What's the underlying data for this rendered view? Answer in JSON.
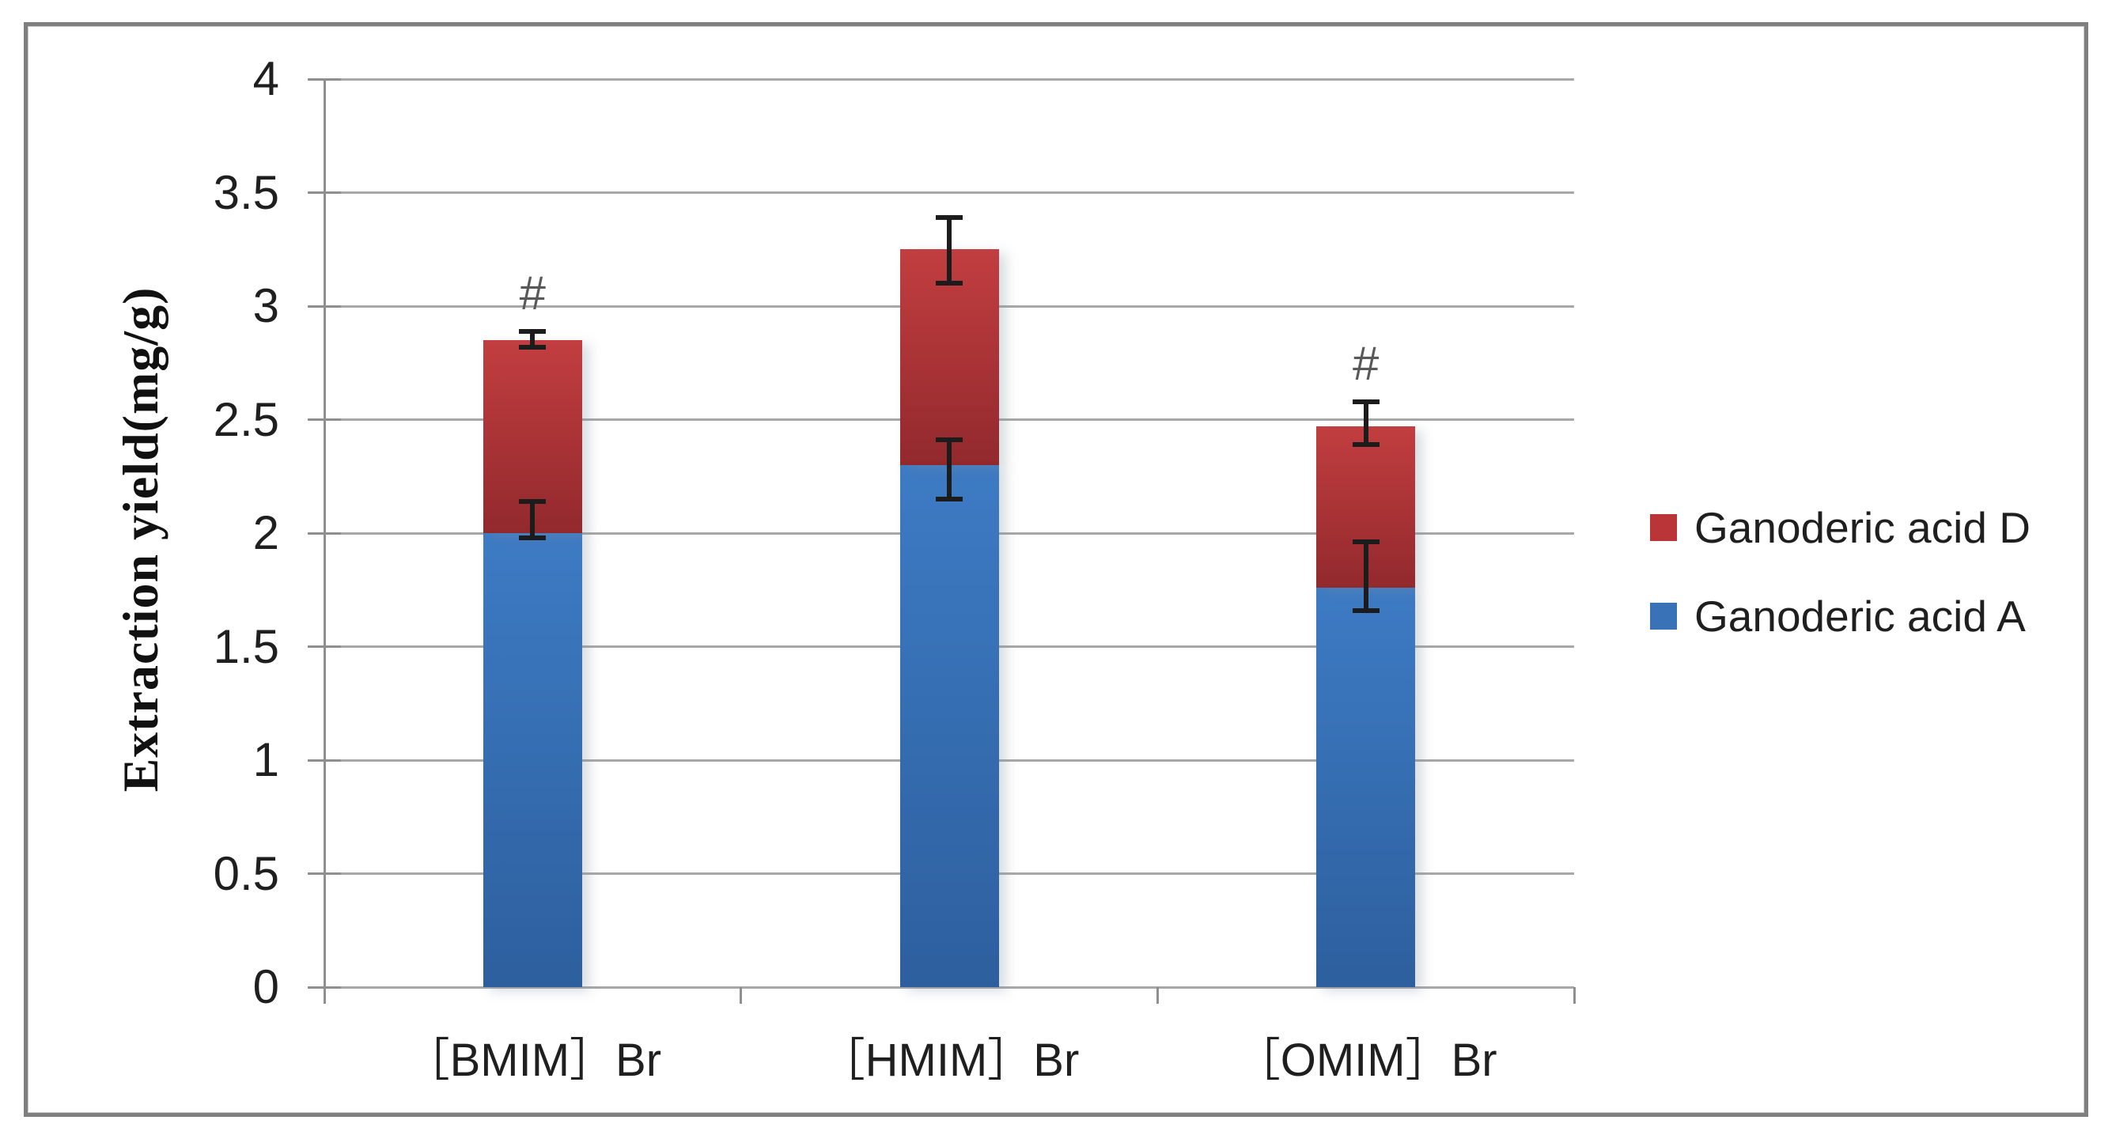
{
  "chart_data": {
    "type": "bar",
    "stacked": true,
    "title": "",
    "xlabel": "",
    "ylabel": "Extraction yield(mg/g)",
    "ylim": [
      0,
      4
    ],
    "ytick_step": 0.5,
    "ytick_labels": [
      "0",
      "0.5",
      "1",
      "1.5",
      "2",
      "2.5",
      "3",
      "3.5",
      "4"
    ],
    "grid": true,
    "legend_position": "right",
    "categories": [
      "［BMIM］Br",
      "［HMIM］Br",
      "［OMIM］Br"
    ],
    "series": [
      {
        "name": "Ganoderic acid A",
        "color_top": "#3d7bc4",
        "color_bottom": "#2d5f9e",
        "values": [
          2.0,
          2.3,
          1.76
        ],
        "error_whiskers": [
          {
            "lo": 1.98,
            "hi": 2.14
          },
          {
            "lo": 2.15,
            "hi": 2.41
          },
          {
            "lo": 1.66,
            "hi": 1.96
          }
        ]
      },
      {
        "name": "Ganoderic acid D",
        "color_top": "#c23e40",
        "color_bottom": "#92292d",
        "values": [
          0.85,
          0.95,
          0.71
        ],
        "error_whiskers": [
          {
            "lo": 2.82,
            "hi": 2.89
          },
          {
            "lo": 3.1,
            "hi": 3.39
          },
          {
            "lo": 2.39,
            "hi": 2.58
          }
        ]
      }
    ],
    "stack_totals": [
      2.85,
      3.25,
      2.47
    ],
    "annotations": [
      {
        "text": "#",
        "category_index": 0
      },
      {
        "text": "#",
        "category_index": 2
      }
    ]
  },
  "legend": {
    "items": [
      {
        "label": "Ganoderic acid D",
        "color": "#b93538"
      },
      {
        "label": "Ganoderic acid A",
        "color": "#3a72b8"
      }
    ]
  },
  "colors": {
    "background": "#ffffff",
    "frame_border": "#7f7f7f",
    "gridline": "#a8a8a8",
    "axis": "#8f8f8f",
    "tick_text": "#1f1f1f",
    "hash_annotation": "#595959",
    "error_bar": "#1c1c1c"
  }
}
